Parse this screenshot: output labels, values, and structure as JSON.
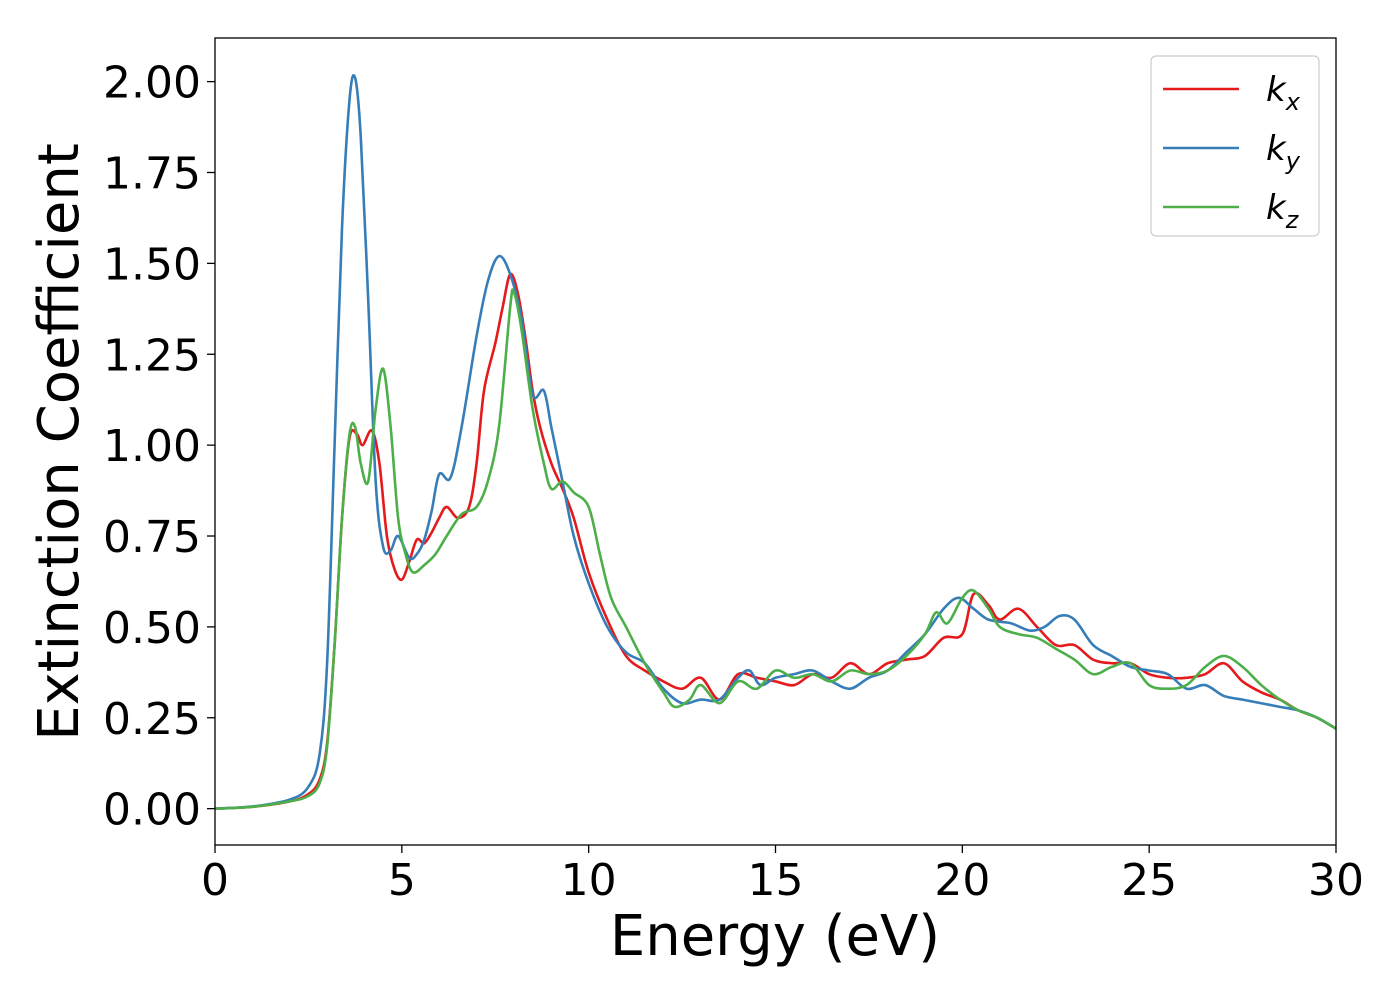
{
  "chart_data": {
    "type": "line",
    "xlabel": "Energy (eV)",
    "ylabel": "Extinction Coefficient",
    "xlim": [
      0,
      30
    ],
    "ylim": [
      -0.1,
      2.12
    ],
    "x_ticks": [
      0,
      5,
      10,
      15,
      20,
      25,
      30
    ],
    "x_tick_labels": [
      "0",
      "5",
      "10",
      "15",
      "20",
      "25",
      "30"
    ],
    "y_ticks": [
      0,
      0.25,
      0.5,
      0.75,
      1.0,
      1.25,
      1.5,
      1.75,
      2.0
    ],
    "y_tick_labels": [
      "0.00",
      "0.25",
      "0.50",
      "0.75",
      "1.00",
      "1.25",
      "1.50",
      "1.75",
      "2.00"
    ],
    "grid": false,
    "legend_position": "top-right",
    "series": [
      {
        "name": "k_x",
        "label_base": "k",
        "label_sub": "x",
        "color": "#e41a1c",
        "points": [
          [
            0,
            0
          ],
          [
            1,
            0.005
          ],
          [
            2,
            0.02
          ],
          [
            2.5,
            0.04
          ],
          [
            2.8,
            0.08
          ],
          [
            3.0,
            0.18
          ],
          [
            3.2,
            0.45
          ],
          [
            3.4,
            0.8
          ],
          [
            3.6,
            1.02
          ],
          [
            3.8,
            1.03
          ],
          [
            3.95,
            1.0
          ],
          [
            4.2,
            1.04
          ],
          [
            4.4,
            0.95
          ],
          [
            4.6,
            0.75
          ],
          [
            4.8,
            0.66
          ],
          [
            5.0,
            0.63
          ],
          [
            5.2,
            0.68
          ],
          [
            5.4,
            0.74
          ],
          [
            5.6,
            0.73
          ],
          [
            5.8,
            0.76
          ],
          [
            6.0,
            0.8
          ],
          [
            6.2,
            0.83
          ],
          [
            6.5,
            0.8
          ],
          [
            6.8,
            0.83
          ],
          [
            7.0,
            0.95
          ],
          [
            7.2,
            1.15
          ],
          [
            7.5,
            1.28
          ],
          [
            7.7,
            1.38
          ],
          [
            7.9,
            1.47
          ],
          [
            8.1,
            1.42
          ],
          [
            8.3,
            1.3
          ],
          [
            8.5,
            1.15
          ],
          [
            8.7,
            1.05
          ],
          [
            9.0,
            0.95
          ],
          [
            9.3,
            0.88
          ],
          [
            9.6,
            0.8
          ],
          [
            10.0,
            0.65
          ],
          [
            10.5,
            0.52
          ],
          [
            11.0,
            0.42
          ],
          [
            11.5,
            0.38
          ],
          [
            12.0,
            0.35
          ],
          [
            12.5,
            0.33
          ],
          [
            13.0,
            0.36
          ],
          [
            13.5,
            0.3
          ],
          [
            14.0,
            0.37
          ],
          [
            14.5,
            0.36
          ],
          [
            15.0,
            0.35
          ],
          [
            15.5,
            0.34
          ],
          [
            16.0,
            0.37
          ],
          [
            16.5,
            0.36
          ],
          [
            17.0,
            0.4
          ],
          [
            17.5,
            0.37
          ],
          [
            18.0,
            0.4
          ],
          [
            18.5,
            0.41
          ],
          [
            19.0,
            0.42
          ],
          [
            19.5,
            0.47
          ],
          [
            20.0,
            0.48
          ],
          [
            20.3,
            0.59
          ],
          [
            20.7,
            0.56
          ],
          [
            21.0,
            0.52
          ],
          [
            21.5,
            0.55
          ],
          [
            22.0,
            0.5
          ],
          [
            22.5,
            0.45
          ],
          [
            23.0,
            0.45
          ],
          [
            23.5,
            0.41
          ],
          [
            24.0,
            0.4
          ],
          [
            24.5,
            0.4
          ],
          [
            25.0,
            0.37
          ],
          [
            25.5,
            0.36
          ],
          [
            26.0,
            0.36
          ],
          [
            26.5,
            0.37
          ],
          [
            27.0,
            0.4
          ],
          [
            27.5,
            0.35
          ],
          [
            28.0,
            0.32
          ],
          [
            28.5,
            0.3
          ],
          [
            29.0,
            0.27
          ],
          [
            29.5,
            0.25
          ],
          [
            30.0,
            0.22
          ]
        ]
      },
      {
        "name": "k_y",
        "label_base": "k",
        "label_sub": "y",
        "color": "#377eb8",
        "points": [
          [
            0,
            0
          ],
          [
            1,
            0.006
          ],
          [
            2,
            0.025
          ],
          [
            2.5,
            0.06
          ],
          [
            2.8,
            0.15
          ],
          [
            3.0,
            0.4
          ],
          [
            3.2,
            1.0
          ],
          [
            3.4,
            1.6
          ],
          [
            3.6,
            1.95
          ],
          [
            3.75,
            2.01
          ],
          [
            3.9,
            1.85
          ],
          [
            4.1,
            1.4
          ],
          [
            4.3,
            0.9
          ],
          [
            4.5,
            0.72
          ],
          [
            4.7,
            0.71
          ],
          [
            4.9,
            0.75
          ],
          [
            5.2,
            0.69
          ],
          [
            5.4,
            0.7
          ],
          [
            5.6,
            0.74
          ],
          [
            5.8,
            0.82
          ],
          [
            6.0,
            0.92
          ],
          [
            6.3,
            0.91
          ],
          [
            6.6,
            1.05
          ],
          [
            7.0,
            1.3
          ],
          [
            7.3,
            1.45
          ],
          [
            7.6,
            1.52
          ],
          [
            7.9,
            1.47
          ],
          [
            8.2,
            1.35
          ],
          [
            8.5,
            1.14
          ],
          [
            8.8,
            1.15
          ],
          [
            9.0,
            1.05
          ],
          [
            9.3,
            0.9
          ],
          [
            9.6,
            0.75
          ],
          [
            10.0,
            0.62
          ],
          [
            10.5,
            0.5
          ],
          [
            11.0,
            0.43
          ],
          [
            11.5,
            0.4
          ],
          [
            12.0,
            0.33
          ],
          [
            12.5,
            0.29
          ],
          [
            13.0,
            0.3
          ],
          [
            13.5,
            0.3
          ],
          [
            14.0,
            0.36
          ],
          [
            14.3,
            0.38
          ],
          [
            14.6,
            0.34
          ],
          [
            15.0,
            0.36
          ],
          [
            15.5,
            0.37
          ],
          [
            16.0,
            0.38
          ],
          [
            16.5,
            0.35
          ],
          [
            17.0,
            0.33
          ],
          [
            17.5,
            0.36
          ],
          [
            18.0,
            0.38
          ],
          [
            18.5,
            0.43
          ],
          [
            19.0,
            0.48
          ],
          [
            19.5,
            0.55
          ],
          [
            19.9,
            0.58
          ],
          [
            20.3,
            0.55
          ],
          [
            20.7,
            0.52
          ],
          [
            21.3,
            0.51
          ],
          [
            21.8,
            0.49
          ],
          [
            22.2,
            0.5
          ],
          [
            22.6,
            0.53
          ],
          [
            23.0,
            0.52
          ],
          [
            23.5,
            0.45
          ],
          [
            24.0,
            0.42
          ],
          [
            24.5,
            0.39
          ],
          [
            25.0,
            0.38
          ],
          [
            25.5,
            0.37
          ],
          [
            26.0,
            0.33
          ],
          [
            26.5,
            0.34
          ],
          [
            27.0,
            0.31
          ],
          [
            27.5,
            0.3
          ],
          [
            28.0,
            0.29
          ],
          [
            28.5,
            0.28
          ],
          [
            29.0,
            0.27
          ],
          [
            29.5,
            0.25
          ],
          [
            30.0,
            0.22
          ]
        ]
      },
      {
        "name": "k_z",
        "label_base": "k",
        "label_sub": "z",
        "color": "#4daf4a",
        "points": [
          [
            0,
            0
          ],
          [
            1,
            0.005
          ],
          [
            2,
            0.02
          ],
          [
            2.5,
            0.035
          ],
          [
            2.8,
            0.07
          ],
          [
            3.0,
            0.17
          ],
          [
            3.2,
            0.45
          ],
          [
            3.4,
            0.8
          ],
          [
            3.6,
            1.03
          ],
          [
            3.75,
            1.05
          ],
          [
            3.9,
            0.95
          ],
          [
            4.1,
            0.9
          ],
          [
            4.3,
            1.1
          ],
          [
            4.5,
            1.21
          ],
          [
            4.7,
            1.05
          ],
          [
            4.9,
            0.8
          ],
          [
            5.1,
            0.7
          ],
          [
            5.3,
            0.65
          ],
          [
            5.6,
            0.67
          ],
          [
            5.9,
            0.7
          ],
          [
            6.2,
            0.75
          ],
          [
            6.6,
            0.81
          ],
          [
            7.0,
            0.83
          ],
          [
            7.3,
            0.9
          ],
          [
            7.6,
            1.05
          ],
          [
            7.9,
            1.38
          ],
          [
            8.0,
            1.42
          ],
          [
            8.2,
            1.32
          ],
          [
            8.5,
            1.1
          ],
          [
            8.8,
            0.95
          ],
          [
            9.0,
            0.88
          ],
          [
            9.3,
            0.9
          ],
          [
            9.6,
            0.87
          ],
          [
            10.0,
            0.83
          ],
          [
            10.3,
            0.7
          ],
          [
            10.6,
            0.58
          ],
          [
            11.0,
            0.5
          ],
          [
            11.5,
            0.4
          ],
          [
            12.0,
            0.32
          ],
          [
            12.3,
            0.28
          ],
          [
            12.7,
            0.3
          ],
          [
            13.0,
            0.34
          ],
          [
            13.5,
            0.29
          ],
          [
            14.0,
            0.35
          ],
          [
            14.5,
            0.33
          ],
          [
            15.0,
            0.38
          ],
          [
            15.5,
            0.36
          ],
          [
            16.0,
            0.37
          ],
          [
            16.5,
            0.35
          ],
          [
            17.0,
            0.38
          ],
          [
            17.5,
            0.37
          ],
          [
            18.0,
            0.38
          ],
          [
            18.5,
            0.42
          ],
          [
            19.0,
            0.48
          ],
          [
            19.3,
            0.54
          ],
          [
            19.6,
            0.51
          ],
          [
            20.0,
            0.58
          ],
          [
            20.3,
            0.6
          ],
          [
            20.7,
            0.55
          ],
          [
            21.0,
            0.5
          ],
          [
            21.5,
            0.48
          ],
          [
            22.0,
            0.47
          ],
          [
            22.5,
            0.44
          ],
          [
            23.0,
            0.41
          ],
          [
            23.5,
            0.37
          ],
          [
            24.0,
            0.39
          ],
          [
            24.5,
            0.4
          ],
          [
            25.0,
            0.34
          ],
          [
            25.5,
            0.33
          ],
          [
            26.0,
            0.34
          ],
          [
            26.5,
            0.39
          ],
          [
            27.0,
            0.42
          ],
          [
            27.5,
            0.39
          ],
          [
            28.0,
            0.34
          ],
          [
            28.5,
            0.3
          ],
          [
            29.0,
            0.27
          ],
          [
            29.5,
            0.25
          ],
          [
            30.0,
            0.22
          ]
        ]
      }
    ]
  }
}
